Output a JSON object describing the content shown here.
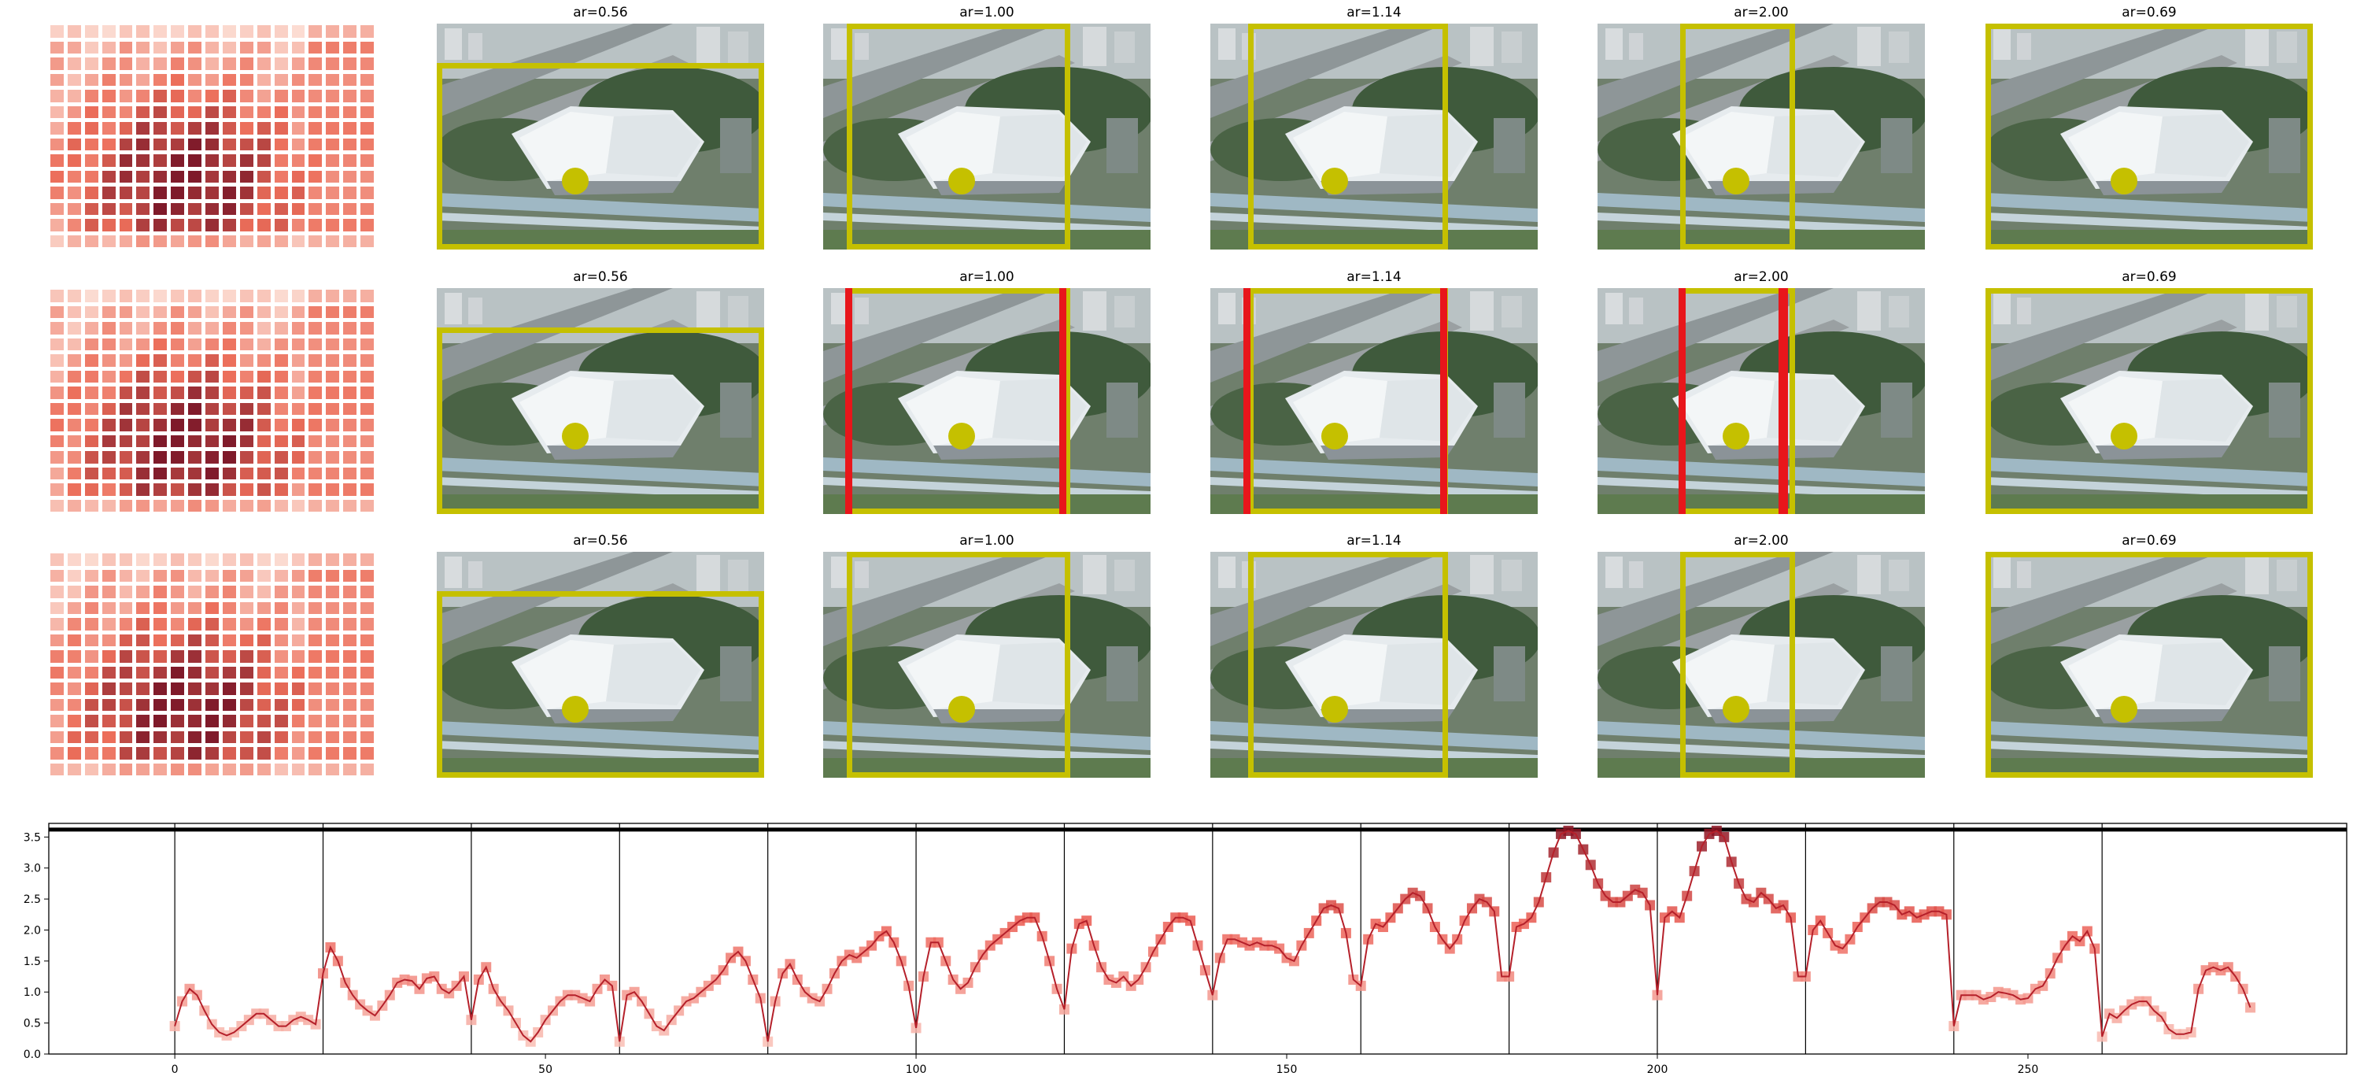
{
  "panels": {
    "aspect_labels": [
      "ar=0.56",
      "ar=1.00",
      "ar=1.14",
      "ar=2.00",
      "ar=0.69"
    ],
    "rows": [
      {
        "aspect_labels": [
          "ar=0.56",
          "ar=1.00",
          "ar=1.14",
          "ar=2.00",
          "ar=0.69"
        ],
        "red_bars": [
          false,
          false,
          false,
          false,
          false
        ]
      },
      {
        "aspect_labels": [
          "ar=0.56",
          "ar=1.00",
          "ar=1.14",
          "ar=2.00",
          "ar=0.69"
        ],
        "red_bars": [
          false,
          true,
          true,
          true,
          false
        ]
      },
      {
        "aspect_labels": [
          "ar=0.56",
          "ar=1.00",
          "ar=1.14",
          "ar=2.00",
          "ar=0.69"
        ],
        "red_bars": [
          false,
          false,
          false,
          false,
          false
        ]
      }
    ],
    "colors": {
      "box": "#c5c000",
      "red_bar": "#e8161b",
      "heat_low": "#fde6dd",
      "heat_high": "#7f1a2a"
    }
  },
  "chart_data": {
    "type": "line",
    "title": "",
    "xlabel": "",
    "ylabel": "",
    "xlim": [
      -17,
      293
    ],
    "ylim": [
      0,
      3.72
    ],
    "xticks": [
      0,
      50,
      100,
      150,
      200,
      250
    ],
    "yticks": [
      "0.0",
      "0.5",
      "1.0",
      "1.5",
      "2.0",
      "2.5",
      "3.0",
      "3.5"
    ],
    "hline": 3.62,
    "vlines": [
      0,
      20,
      40,
      60,
      80,
      100,
      120,
      140,
      160,
      180,
      200,
      220,
      240,
      260
    ],
    "series": [
      {
        "x_start": 0,
        "values": [
          0.45,
          0.85,
          1.05,
          0.95,
          0.7,
          0.48,
          0.35,
          0.3,
          0.35,
          0.45,
          0.55,
          0.65,
          0.65,
          0.55,
          0.45,
          0.45,
          0.55,
          0.6,
          0.55,
          0.48,
          1.3,
          1.72,
          1.5,
          1.15,
          0.95,
          0.8,
          0.7,
          0.62,
          0.78,
          0.95,
          1.15,
          1.2,
          1.18,
          1.05,
          1.22,
          1.25,
          1.05,
          0.98,
          1.1,
          1.25,
          0.55,
          1.2,
          1.4,
          1.05,
          0.85,
          0.7,
          0.5,
          0.3,
          0.2,
          0.35,
          0.55,
          0.7,
          0.85,
          0.95,
          0.95,
          0.9,
          0.85,
          1.05,
          1.2,
          1.1,
          0.2,
          0.95,
          1.0,
          0.85,
          0.65,
          0.45,
          0.38,
          0.55,
          0.7,
          0.85,
          0.9,
          1.0,
          1.1,
          1.2,
          1.35,
          1.55,
          1.65,
          1.5,
          1.2,
          0.9,
          0.2,
          0.85,
          1.3,
          1.45,
          1.2,
          1.0,
          0.9,
          0.85,
          1.05,
          1.3,
          1.5,
          1.6,
          1.55,
          1.65,
          1.75,
          1.9,
          1.98,
          1.8,
          1.5,
          1.1,
          0.42,
          1.25,
          1.8,
          1.8,
          1.5,
          1.2,
          1.05,
          1.15,
          1.4,
          1.6,
          1.75,
          1.85,
          1.95,
          2.05,
          2.15,
          2.2,
          2.2,
          1.9,
          1.5,
          1.05,
          0.72,
          1.7,
          2.1,
          2.15,
          1.75,
          1.4,
          1.2,
          1.15,
          1.25,
          1.1,
          1.2,
          1.4,
          1.65,
          1.85,
          2.05,
          2.2,
          2.2,
          2.15,
          1.75,
          1.35,
          0.95,
          1.55,
          1.85,
          1.85,
          1.8,
          1.75,
          1.8,
          1.75,
          1.75,
          1.7,
          1.55,
          1.5,
          1.75,
          1.95,
          2.15,
          2.35,
          2.4,
          2.35,
          1.95,
          1.2,
          1.1,
          1.85,
          2.1,
          2.05,
          2.2,
          2.35,
          2.5,
          2.6,
          2.55,
          2.35,
          2.05,
          1.85,
          1.7,
          1.85,
          2.15,
          2.35,
          2.5,
          2.45,
          2.3,
          1.25,
          1.25,
          2.05,
          2.1,
          2.2,
          2.45,
          2.85,
          3.25,
          3.55,
          3.6,
          3.55,
          3.3,
          3.05,
          2.75,
          2.55,
          2.45,
          2.45,
          2.55,
          2.65,
          2.6,
          2.4,
          0.95,
          2.2,
          2.3,
          2.2,
          2.55,
          2.95,
          3.35,
          3.55,
          3.6,
          3.5,
          3.1,
          2.75,
          2.5,
          2.45,
          2.6,
          2.5,
          2.35,
          2.4,
          2.2,
          1.25,
          1.25,
          2.0,
          2.15,
          1.95,
          1.75,
          1.7,
          1.85,
          2.05,
          2.2,
          2.35,
          2.45,
          2.45,
          2.4,
          2.25,
          2.3,
          2.2,
          2.25,
          2.3,
          2.3,
          2.25,
          0.45,
          0.95,
          0.95,
          0.95,
          0.88,
          0.92,
          1.0,
          0.98,
          0.95,
          0.88,
          0.9,
          1.05,
          1.1,
          1.3,
          1.55,
          1.75,
          1.9,
          1.82,
          1.98,
          1.7,
          0.28,
          0.65,
          0.58,
          0.7,
          0.8,
          0.85,
          0.85,
          0.7,
          0.6,
          0.4,
          0.32,
          0.32,
          0.35,
          1.05,
          1.35,
          1.4,
          1.35,
          1.4,
          1.25,
          1.05,
          0.75
        ]
      }
    ]
  }
}
